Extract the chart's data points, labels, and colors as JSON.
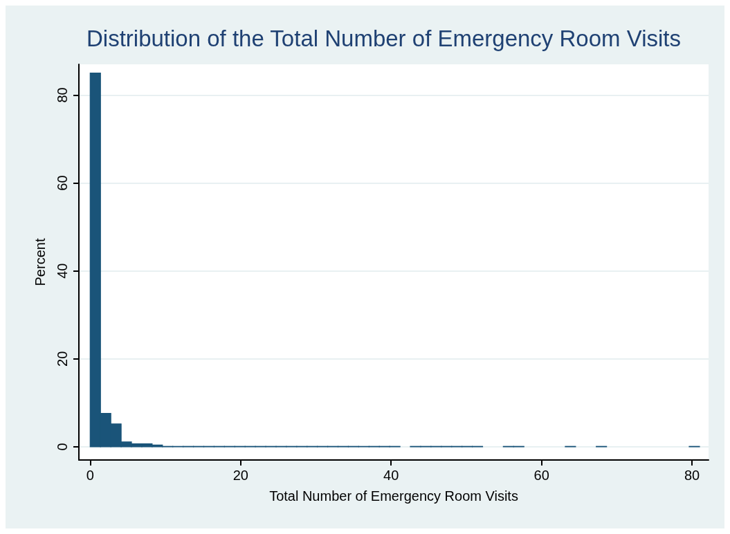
{
  "chart_data": {
    "type": "histogram",
    "title": "Distribution of the Total Number of Emergency Room Visits",
    "xlabel": "Total Number of Emergency Room Visits",
    "ylabel": "Percent",
    "bins": [
      0,
      1.373,
      2.746,
      4.119,
      5.492,
      6.864,
      8.237,
      9.61,
      10.983,
      12.356,
      13.729,
      15.102,
      16.475,
      17.847,
      19.22,
      20.593,
      21.966,
      23.339,
      24.712,
      26.085,
      27.458,
      28.831,
      30.203,
      31.576,
      32.949,
      34.322,
      35.695,
      37.068,
      38.441,
      39.814,
      41.186,
      42.559,
      43.932,
      45.305,
      46.678,
      48.051,
      49.424,
      50.797,
      52.169,
      53.542,
      54.915,
      56.288,
      57.661,
      59.034,
      60.407,
      61.78,
      63.153,
      64.525,
      65.898,
      67.271,
      68.644,
      70.017,
      71.39,
      72.763,
      74.136,
      75.508,
      76.881,
      78.254,
      79.627,
      81
    ],
    "values": [
      85,
      7.6,
      5.2,
      1.1,
      0.7,
      0.7,
      0.4,
      0.1,
      0.1,
      0.1,
      0.1,
      0.1,
      0.1,
      0.1,
      0.1,
      0.1,
      0.1,
      0.1,
      0.1,
      0.1,
      0.1,
      0.1,
      0.1,
      0.1,
      0.1,
      0.1,
      0.1,
      0.1,
      0.1,
      0.1,
      0,
      0.1,
      0.1,
      0.1,
      0.1,
      0.1,
      0.1,
      0.1,
      0,
      0,
      0.1,
      0.1,
      0,
      0,
      0,
      0,
      0.1,
      0,
      0,
      0.1,
      0,
      0,
      0,
      0,
      0,
      0,
      0,
      0,
      0.1
    ],
    "color": "#1a5479",
    "xlim": [
      -1.5,
      82.2
    ],
    "ylim": [
      -3,
      87
    ],
    "xticks": [
      0,
      20,
      40,
      60,
      80
    ],
    "yticks": [
      0,
      20,
      40,
      60,
      80
    ],
    "grid": "y"
  }
}
